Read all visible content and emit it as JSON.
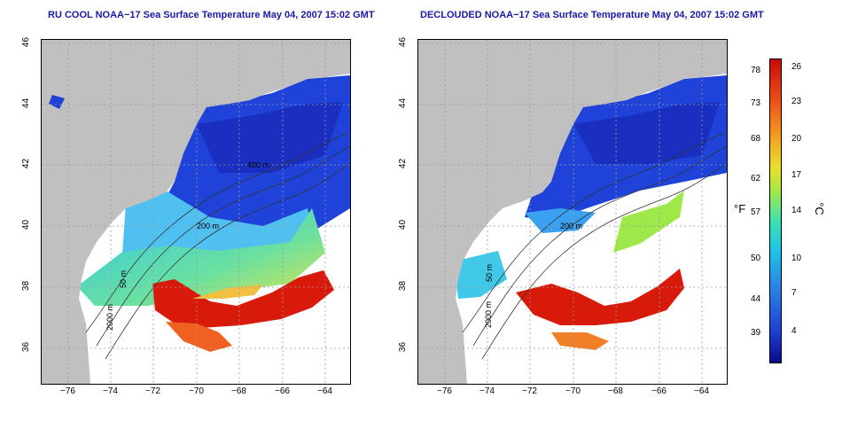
{
  "maps": {
    "left_title": "RU COOL NOAA−17 Sea Surface Temperature May 04, 2007 15:02 GMT",
    "right_title": "DECLOUDED NOAA−17 Sea Surface Temperature May 04, 2007 15:02 GMT",
    "lon_ticks": [
      "−76",
      "−74",
      "−72",
      "−70",
      "−68",
      "−66",
      "−64"
    ],
    "lat_ticks": [
      "46",
      "44",
      "42",
      "40",
      "38",
      "36"
    ],
    "contour_labels": [
      "400 m",
      "200 m",
      "50 m",
      "2000 m",
      "200 m",
      "50 m",
      "2000 m"
    ],
    "colors": {
      "land": "#c0c0c0",
      "grid": "#9a9a9a",
      "cold": "#1a3fd4",
      "warm": "#d61a0a"
    }
  },
  "colorbar": {
    "fahrenheit_ticks": [
      "78",
      "73",
      "68",
      "62",
      "57",
      "50",
      "44",
      "39"
    ],
    "celsius_ticks": [
      "26",
      "23",
      "20",
      "17",
      "14",
      "10",
      "7",
      "4"
    ],
    "fahrenheit_unit": "°F",
    "celsius_unit": "°C"
  }
}
